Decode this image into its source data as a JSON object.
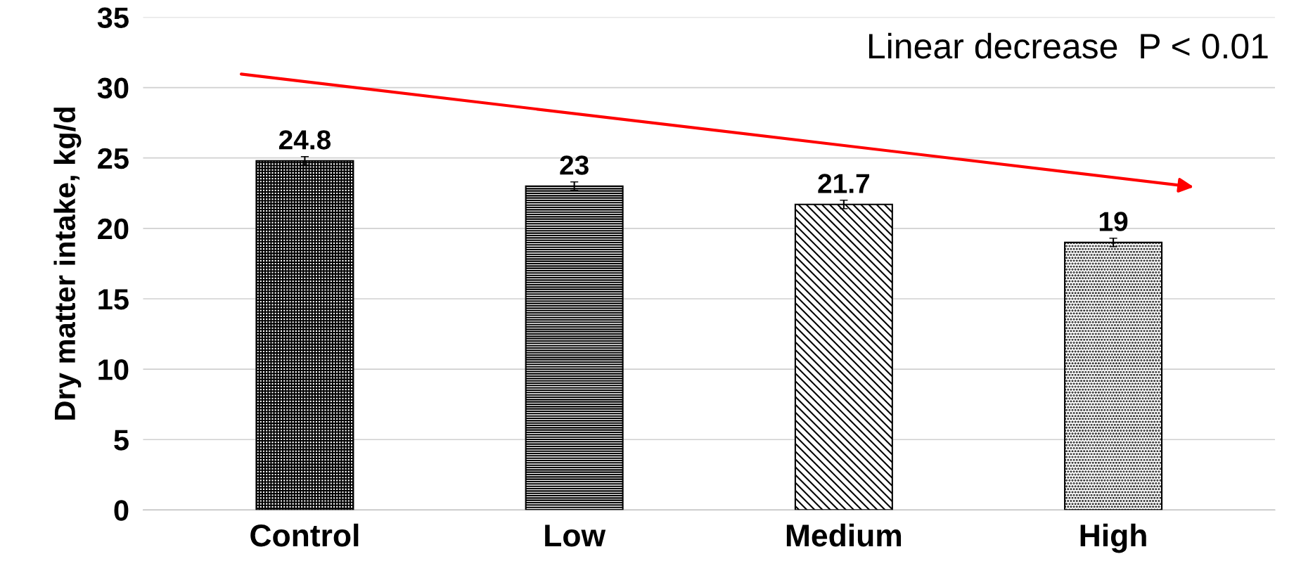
{
  "chart_data": {
    "type": "bar",
    "ylabel": "Dry matter intake, kg/d",
    "categories": [
      "Control",
      "Low",
      "Medium",
      "High"
    ],
    "values": [
      24.8,
      23,
      21.7,
      19
    ],
    "errors": [
      0.3,
      0.3,
      0.3,
      0.3
    ],
    "colors": [
      "#000000",
      "#000000",
      "#000000",
      "#000000"
    ],
    "data_labels": true,
    "ylim": [
      0,
      35
    ],
    "yticks": [
      0,
      5,
      10,
      15,
      20,
      25,
      30,
      35
    ],
    "grid": "y",
    "annotations": [
      "Linear decrease  P < 0.01"
    ]
  }
}
